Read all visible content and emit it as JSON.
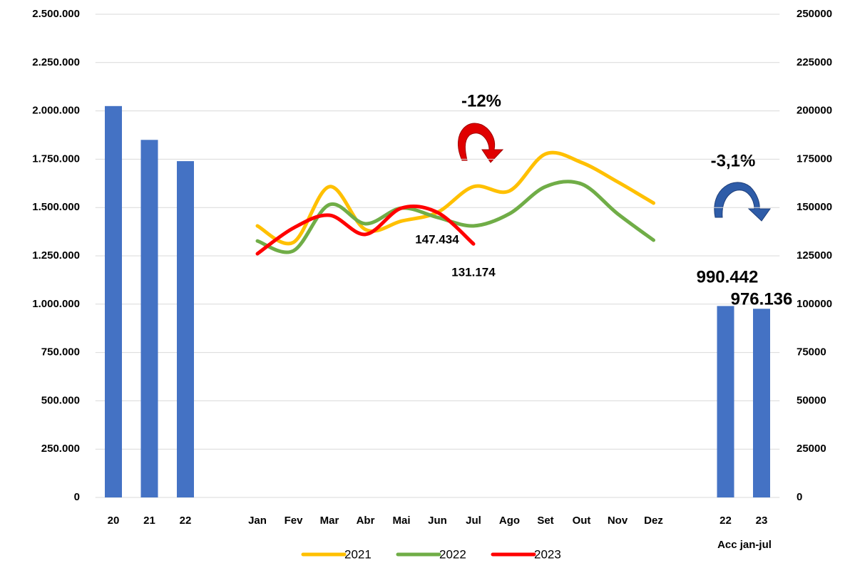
{
  "chart_data": {
    "type": "combo",
    "categories": [
      "20",
      "21",
      "22",
      null,
      "Jan",
      "Fev",
      "Mar",
      "Abr",
      "Mai",
      "Jun",
      "Jul",
      "Ago",
      "Set",
      "Out",
      "Nov",
      "Dez",
      null,
      "22",
      "23"
    ],
    "x_label": "Acc jan-jul",
    "series": [
      {
        "type": "bar",
        "color": "#4472c4",
        "axis": "y",
        "values": [
          2025000,
          1850000,
          1740000,
          null,
          null,
          null,
          null,
          null,
          null,
          null,
          null,
          null,
          null,
          null,
          null,
          null,
          null,
          990442,
          976136
        ],
        "value_labels": [
          null,
          null,
          null,
          null,
          null,
          null,
          null,
          null,
          null,
          null,
          null,
          null,
          null,
          null,
          null,
          null,
          null,
          "990.442",
          "976.136"
        ]
      },
      {
        "type": "line",
        "name": "2021",
        "color": "#ffc000",
        "axis": "y2",
        "values": [
          null,
          null,
          null,
          null,
          140500,
          132000,
          160800,
          138600,
          143000,
          147500,
          160800,
          158600,
          177700,
          173300,
          163300,
          152300,
          null,
          null,
          null
        ]
      },
      {
        "type": "line",
        "name": "2022",
        "color": "#70ad47",
        "axis": "y2",
        "values": [
          null,
          null,
          null,
          null,
          132700,
          127600,
          151500,
          141600,
          149700,
          144900,
          140500,
          146800,
          160800,
          162200,
          146800,
          133100,
          null,
          null,
          null
        ]
      },
      {
        "type": "line",
        "name": "2023",
        "color": "#ff0000",
        "axis": "y2",
        "values": [
          null,
          null,
          null,
          null,
          126100,
          139400,
          146000,
          136100,
          149700,
          147434,
          131174,
          null,
          null,
          null,
          null,
          null,
          null,
          null,
          null
        ],
        "value_labels": [
          null,
          null,
          null,
          null,
          null,
          null,
          null,
          null,
          null,
          "147.434",
          "131.174",
          null,
          null,
          null,
          null,
          null,
          null,
          null,
          null
        ]
      }
    ],
    "annotations": [
      "-12%",
      "-3,1%"
    ],
    "ylim": [
      0,
      2500000
    ],
    "yticks": [
      {
        "value": 0,
        "label": "0"
      },
      {
        "value": 250000,
        "label": "250.000"
      },
      {
        "value": 500000,
        "label": "500.000"
      },
      {
        "value": 750000,
        "label": "750.000"
      },
      {
        "value": 1000000,
        "label": "1.000.000"
      },
      {
        "value": 1250000,
        "label": "1.250.000"
      },
      {
        "value": 1500000,
        "label": "1.500.000"
      },
      {
        "value": 1750000,
        "label": "1.750.000"
      },
      {
        "value": 2000000,
        "label": "2.000.000"
      },
      {
        "value": 2250000,
        "label": "2.250.000"
      },
      {
        "value": 2500000,
        "label": "2.500.000"
      }
    ],
    "y2lim": [
      0,
      250000
    ],
    "y2ticks": [
      0,
      25000,
      50000,
      75000,
      100000,
      125000,
      150000,
      175000,
      200000,
      225000,
      250000
    ],
    "grid": true
  }
}
